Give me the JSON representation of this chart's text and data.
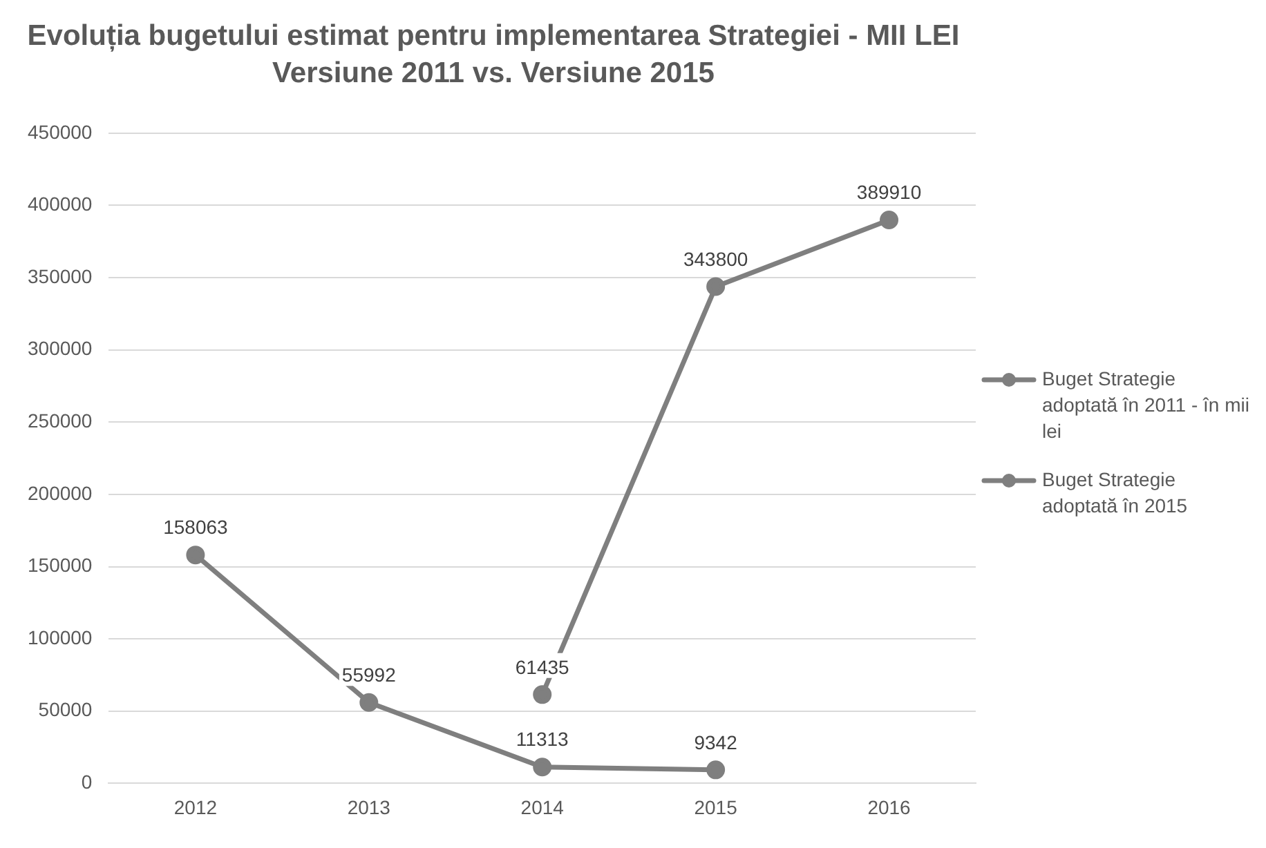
{
  "chart_data": {
    "type": "line",
    "title": "Evoluția bugetului estimat pentru implementarea Strategiei - MII LEI",
    "subtitle": "Versiune 2011 vs. Versiune 2015",
    "categories": [
      "2012",
      "2013",
      "2014",
      "2015",
      "2016"
    ],
    "series": [
      {
        "name": "Buget Strategie adoptată în 2011 - în mii lei",
        "color": "#7f7f7f",
        "values": [
          158063,
          55992,
          11313,
          9342,
          null
        ]
      },
      {
        "name": "Buget Strategie adoptată în 2015",
        "color": "#7f7f7f",
        "values": [
          null,
          null,
          61435,
          343800,
          389910
        ]
      }
    ],
    "ylim": [
      0,
      450000
    ],
    "yticks": [
      0,
      50000,
      100000,
      150000,
      200000,
      250000,
      300000,
      350000,
      400000,
      450000
    ],
    "grid": "y",
    "legend": "right",
    "marker": "circle",
    "line_style": "solid",
    "data_labels": true
  }
}
